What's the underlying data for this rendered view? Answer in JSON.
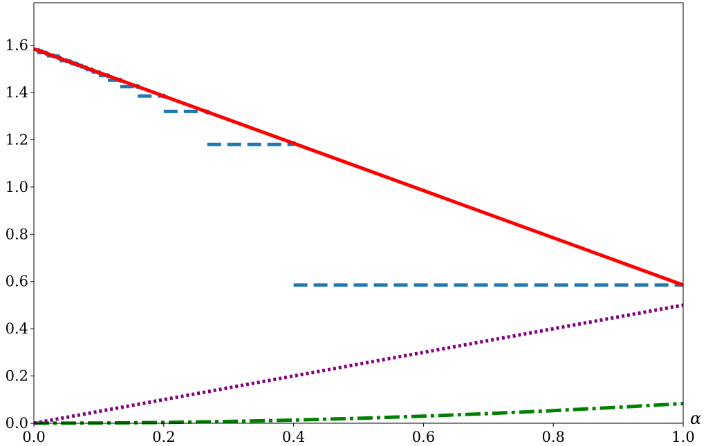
{
  "chart_data": {
    "type": "line",
    "title": "",
    "xlabel": "α",
    "ylabel": "",
    "xlim": [
      0.0,
      1.0
    ],
    "ylim": [
      0.0,
      1.78
    ],
    "grid": false,
    "legend": "none",
    "x_ticks": [
      "0.0",
      "0.2",
      "0.4",
      "0.6",
      "0.8",
      "1.0"
    ],
    "y_ticks": [
      "0.0",
      "0.2",
      "0.4",
      "0.6",
      "0.8",
      "1.0",
      "1.2",
      "1.4",
      "1.6"
    ],
    "series": [
      {
        "style": "solid",
        "color": "#ff0000",
        "x": [
          0.0,
          1.0
        ],
        "y": [
          1.585,
          0.585
        ]
      },
      {
        "style": "dashed-steps",
        "color": "#1f77b4",
        "steps": [
          {
            "x": [
              0.4,
              1.0
            ],
            "y": 0.585
          },
          {
            "x": [
              0.267,
              0.4
            ],
            "y": 1.18
          },
          {
            "x": [
              0.2,
              0.267
            ],
            "y": 1.32
          },
          {
            "x": [
              0.16,
              0.2
            ],
            "y": 1.385
          },
          {
            "x": [
              0.133,
              0.16
            ],
            "y": 1.425
          },
          {
            "x": [
              0.114,
              0.133
            ],
            "y": 1.452
          },
          {
            "x": [
              0.1,
              0.114
            ],
            "y": 1.472
          },
          {
            "x": [
              0.089,
              0.1
            ],
            "y": 1.487
          },
          {
            "x": [
              0.08,
              0.089
            ],
            "y": 1.497
          },
          {
            "x": [
              0.073,
              0.08
            ],
            "y": 1.508
          },
          {
            "x": [
              0.067,
              0.073
            ],
            "y": 1.515
          },
          {
            "x": [
              0.057,
              0.067
            ],
            "y": 1.523
          },
          {
            "x": [
              0.04,
              0.057
            ],
            "y": 1.535
          },
          {
            "x": [
              0.02,
              0.04
            ],
            "y": 1.555
          },
          {
            "x": [
              0.005,
              0.02
            ],
            "y": 1.57
          }
        ],
        "points": {
          "x": [
            0.4,
            0.267,
            0.2,
            0.16,
            0.133,
            0.114,
            0.1,
            0.089,
            0.08,
            0.073,
            0.067,
            0.062,
            0.057,
            0.05,
            0.04,
            0.03,
            0.02,
            0.012,
            0.007
          ],
          "y": [
            1.185,
            1.318,
            1.385,
            1.425,
            1.452,
            1.471,
            1.485,
            1.496,
            1.505,
            1.512,
            1.518,
            1.523,
            1.528,
            1.535,
            1.545,
            1.555,
            1.565,
            1.573,
            1.578
          ]
        }
      },
      {
        "style": "dotted",
        "color": "#800080",
        "x": [
          0.0,
          1.0
        ],
        "y": [
          0.0,
          0.5
        ]
      },
      {
        "style": "dash-dot",
        "color": "#008000",
        "x": [
          0.0,
          0.1,
          0.2,
          0.3,
          0.4,
          0.5,
          0.6,
          0.7,
          0.8,
          0.9,
          1.0
        ],
        "y": [
          0.0,
          0.0008,
          0.0033,
          0.0075,
          0.0133,
          0.0208,
          0.03,
          0.0408,
          0.0533,
          0.0675,
          0.0833
        ]
      }
    ]
  }
}
